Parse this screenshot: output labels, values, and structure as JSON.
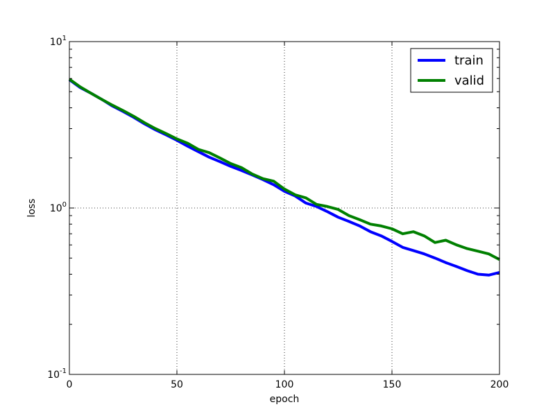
{
  "chart_data": {
    "type": "line",
    "xlabel": "epoch",
    "ylabel": "loss",
    "xlim": [
      0,
      200
    ],
    "ylim": [
      0.1,
      10
    ],
    "yscale": "log",
    "grid": true,
    "legend_position": "top-right",
    "x_ticks": [
      "0",
      "50",
      "100",
      "150",
      "200"
    ],
    "y_ticks": [
      {
        "base": "10",
        "exp": "-1"
      },
      {
        "base": "10",
        "exp": "0"
      },
      {
        "base": "10",
        "exp": "1"
      }
    ],
    "x": [
      0,
      5,
      10,
      15,
      20,
      25,
      30,
      35,
      40,
      45,
      50,
      55,
      60,
      65,
      70,
      75,
      80,
      85,
      90,
      95,
      100,
      105,
      110,
      115,
      120,
      125,
      130,
      135,
      140,
      145,
      150,
      155,
      160,
      165,
      170,
      175,
      180,
      185,
      190,
      195,
      200
    ],
    "series": [
      {
        "name": "train",
        "color": "#0000ff",
        "values": [
          5.9,
          5.3,
          4.9,
          4.5,
          4.1,
          3.8,
          3.5,
          3.2,
          2.95,
          2.75,
          2.55,
          2.35,
          2.18,
          2.02,
          1.9,
          1.78,
          1.68,
          1.58,
          1.48,
          1.38,
          1.26,
          1.18,
          1.07,
          1.02,
          0.95,
          0.88,
          0.83,
          0.78,
          0.72,
          0.68,
          0.63,
          0.58,
          0.555,
          0.53,
          0.5,
          0.47,
          0.445,
          0.42,
          0.4,
          0.395,
          0.41
        ]
      },
      {
        "name": "valid",
        "color": "#008000",
        "values": [
          5.95,
          5.35,
          4.9,
          4.5,
          4.15,
          3.85,
          3.55,
          3.25,
          3.0,
          2.8,
          2.6,
          2.45,
          2.25,
          2.15,
          2.0,
          1.85,
          1.75,
          1.6,
          1.5,
          1.45,
          1.3,
          1.2,
          1.15,
          1.05,
          1.02,
          0.98,
          0.9,
          0.85,
          0.8,
          0.78,
          0.75,
          0.7,
          0.72,
          0.68,
          0.62,
          0.64,
          0.6,
          0.57,
          0.55,
          0.53,
          0.49
        ]
      }
    ]
  }
}
